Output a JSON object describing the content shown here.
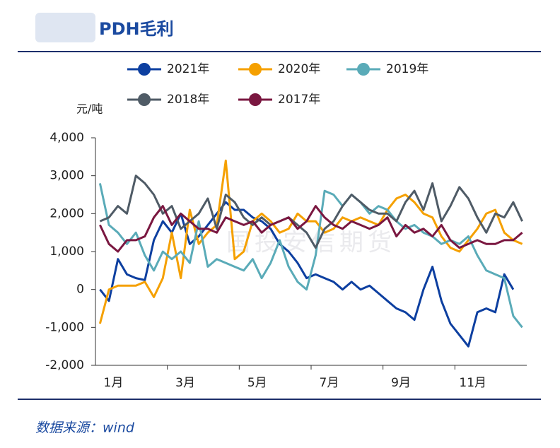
{
  "chart_data": {
    "type": "line",
    "title": "PDH毛利",
    "y_label": "元/吨",
    "source": "数据来源：wind",
    "watermark": "国投安信期货",
    "categories": [
      "1月",
      null,
      null,
      null,
      null,
      null,
      null,
      null,
      "3月",
      null,
      null,
      null,
      null,
      null,
      null,
      null,
      "5月",
      null,
      null,
      null,
      null,
      null,
      null,
      null,
      "7月",
      null,
      null,
      null,
      null,
      null,
      null,
      null,
      "9月",
      null,
      null,
      null,
      null,
      null,
      null,
      null,
      "11月",
      null,
      null,
      null,
      null,
      null,
      null,
      null
    ],
    "ylim": [
      -2000,
      4000
    ],
    "yticks": [
      {
        "value": -2000,
        "label": "-2,000"
      },
      {
        "value": -1000,
        "label": "-1,000"
      },
      0,
      {
        "value": 1000,
        "label": "1,000"
      },
      {
        "value": 2000,
        "label": "2,000"
      },
      {
        "value": 3000,
        "label": "3,000"
      },
      {
        "value": 4000,
        "label": "4,000"
      }
    ],
    "series": [
      {
        "name": "2021年",
        "color": "#0d3fa0",
        "values": [
          0,
          -300,
          800,
          400,
          300,
          250,
          1300,
          1800,
          1500,
          2000,
          1200,
          1400,
          1700,
          2000,
          2300,
          2100,
          2100,
          1900,
          1800,
          1600,
          1200,
          1000,
          700,
          300,
          400,
          300,
          200,
          0,
          200,
          0,
          100,
          -100,
          -300,
          -500,
          -600,
          -800,
          0,
          600,
          -300,
          -900,
          -1200,
          -1500,
          -600,
          -500,
          -600,
          400,
          0,
          null
        ]
      },
      {
        "name": "2020年",
        "color": "#f5a000",
        "values": [
          -900,
          0,
          100,
          100,
          100,
          200,
          -200,
          300,
          1500,
          300,
          2100,
          1200,
          1500,
          1700,
          3400,
          800,
          1000,
          1800,
          2000,
          1800,
          1500,
          1600,
          2000,
          1800,
          1800,
          1500,
          1600,
          1900,
          1800,
          1900,
          1800,
          1700,
          2100,
          2400,
          2500,
          2300,
          2000,
          1900,
          1400,
          1100,
          1000,
          1300,
          1600,
          2000,
          2100,
          1500,
          1300,
          1200
        ]
      },
      {
        "name": "2019年",
        "color": "#5aabb8",
        "values": [
          2800,
          1700,
          1500,
          1200,
          1500,
          900,
          500,
          1000,
          800,
          1000,
          700,
          1800,
          600,
          800,
          700,
          600,
          500,
          800,
          300,
          700,
          1300,
          600,
          200,
          0,
          900,
          2600,
          2500,
          2200,
          2500,
          2300,
          2000,
          2200,
          2100,
          1800,
          1600,
          1700,
          1500,
          1400,
          1200,
          1300,
          1200,
          1400,
          900,
          500,
          400,
          300,
          -700,
          -1000
        ]
      },
      {
        "name": "2018年",
        "color": "#4f5b66",
        "values": [
          1800,
          1900,
          2200,
          2000,
          3000,
          2800,
          2500,
          2000,
          2200,
          1600,
          1800,
          2000,
          2400,
          1600,
          2500,
          2300,
          1900,
          1700,
          1900,
          1700,
          1800,
          1900,
          1700,
          1500,
          1100,
          1600,
          1800,
          2200,
          2500,
          2300,
          2100,
          2000,
          2000,
          1800,
          2300,
          2600,
          2100,
          2800,
          1800,
          2200,
          2700,
          2400,
          1900,
          1500,
          2000,
          1900,
          2300,
          1800
        ]
      },
      {
        "name": "2017年",
        "color": "#7a1740",
        "values": [
          1700,
          1200,
          1000,
          1300,
          1300,
          1400,
          1900,
          2200,
          1700,
          2000,
          1800,
          1600,
          1600,
          1500,
          1900,
          1800,
          1700,
          1800,
          1500,
          1700,
          1800,
          1900,
          1600,
          1800,
          2200,
          1900,
          1700,
          1600,
          1800,
          1700,
          1600,
          1700,
          1900,
          1400,
          1700,
          1500,
          1600,
          1400,
          1700,
          1300,
          1100,
          1200,
          1300,
          1200,
          1200,
          1300,
          1300,
          1500
        ]
      }
    ]
  }
}
